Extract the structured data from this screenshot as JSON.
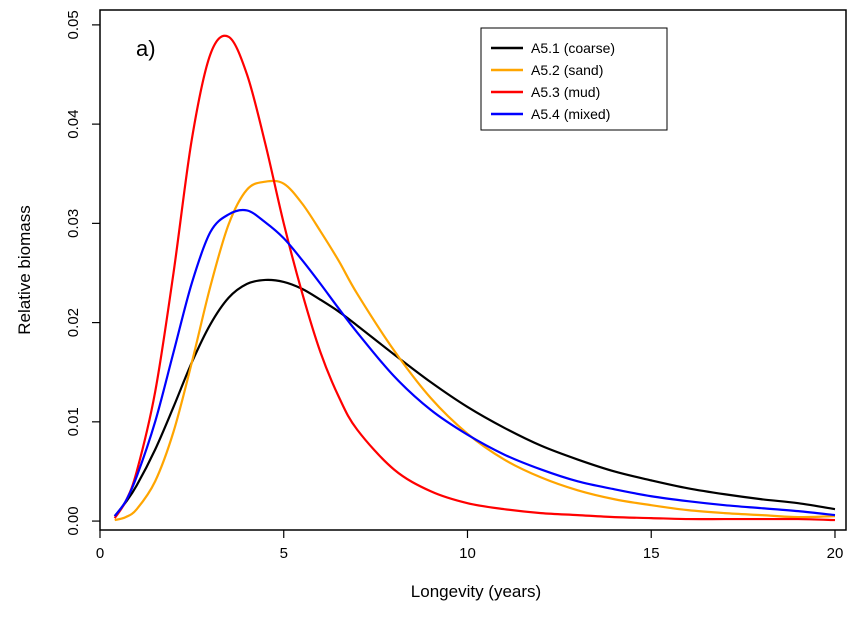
{
  "chart_data": {
    "type": "line",
    "panel_label": "a)",
    "xlabel": "Longevity (years)",
    "ylabel": "Relative biomass",
    "xlim": [
      0,
      20.3
    ],
    "ylim": [
      -0.0009,
      0.0515
    ],
    "xticks": [
      0,
      5,
      10,
      15,
      20
    ],
    "xtick_labels": [
      "0",
      "5",
      "10",
      "15",
      "20"
    ],
    "yticks": [
      0.0,
      0.01,
      0.02,
      0.03,
      0.04,
      0.05
    ],
    "ytick_labels": [
      "0.00",
      "0.01",
      "0.02",
      "0.03",
      "0.04",
      "0.05"
    ],
    "grid": false,
    "legend_position": "top-right",
    "x": [
      0.4,
      0.7,
      1.0,
      1.5,
      2.0,
      2.5,
      3.0,
      3.5,
      4.0,
      4.5,
      5.0,
      5.5,
      6.0,
      6.5,
      7.0,
      8.0,
      9.0,
      10.0,
      11.0,
      12.0,
      13.0,
      14.0,
      15.0,
      16.0,
      17.0,
      18.0,
      19.0,
      20.0
    ],
    "series": [
      {
        "name": "A5.1 (coarse)",
        "color": "#000000",
        "values": [
          0.0005,
          0.0019,
          0.0036,
          0.0072,
          0.0115,
          0.016,
          0.0198,
          0.0225,
          0.0239,
          0.0243,
          0.0241,
          0.0234,
          0.0223,
          0.0211,
          0.0197,
          0.0168,
          0.014,
          0.0115,
          0.0094,
          0.0076,
          0.0062,
          0.005,
          0.0041,
          0.0033,
          0.0027,
          0.0022,
          0.0018,
          0.0012
        ]
      },
      {
        "name": "A5.2 (sand)",
        "color": "#ffa500",
        "values": [
          0.0001,
          0.0004,
          0.0012,
          0.004,
          0.009,
          0.016,
          0.0236,
          0.0299,
          0.0334,
          0.0342,
          0.034,
          0.032,
          0.0292,
          0.0262,
          0.0229,
          0.0172,
          0.0124,
          0.0088,
          0.0062,
          0.0044,
          0.0031,
          0.0022,
          0.0016,
          0.0011,
          0.0008,
          0.0006,
          0.0004,
          0.0005
        ]
      },
      {
        "name": "A5.3 (mud)",
        "color": "#ff0000",
        "values": [
          0.0003,
          0.002,
          0.005,
          0.013,
          0.025,
          0.0385,
          0.047,
          0.0488,
          0.045,
          0.038,
          0.03,
          0.023,
          0.017,
          0.0125,
          0.0092,
          0.0052,
          0.003,
          0.0018,
          0.0012,
          0.0008,
          0.0006,
          0.0004,
          0.0003,
          0.0002,
          0.0002,
          0.0002,
          0.0002,
          0.0001
        ]
      },
      {
        "name": "A5.4 (mixed)",
        "color": "#0000ff",
        "values": [
          0.0005,
          0.002,
          0.0045,
          0.01,
          0.017,
          0.024,
          0.0291,
          0.0309,
          0.0313,
          0.0301,
          0.0285,
          0.0263,
          0.0239,
          0.0214,
          0.019,
          0.0146,
          0.0112,
          0.0087,
          0.0067,
          0.0052,
          0.004,
          0.0032,
          0.0025,
          0.002,
          0.0016,
          0.0013,
          0.001,
          0.0006
        ]
      }
    ]
  }
}
